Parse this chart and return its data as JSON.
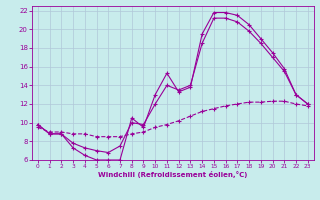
{
  "xlabel": "Windchill (Refroidissement éolien,°C)",
  "bg_color": "#c8ecec",
  "line_color": "#990099",
  "grid_color": "#b0c8d8",
  "xlim": [
    -0.5,
    23.5
  ],
  "ylim": [
    6,
    22.5
  ],
  "xticks": [
    0,
    1,
    2,
    3,
    4,
    5,
    6,
    7,
    8,
    9,
    10,
    11,
    12,
    13,
    14,
    15,
    16,
    17,
    18,
    19,
    20,
    21,
    22,
    23
  ],
  "yticks": [
    6,
    8,
    10,
    12,
    14,
    16,
    18,
    20,
    22
  ],
  "line1_x": [
    0,
    1,
    2,
    3,
    4,
    5,
    6,
    7,
    8,
    9,
    10,
    11,
    12,
    13,
    14,
    15,
    16,
    17,
    18,
    19,
    20,
    21,
    22,
    23
  ],
  "line1_y": [
    9.8,
    8.8,
    8.8,
    7.3,
    6.5,
    6.0,
    6.0,
    6.0,
    10.5,
    9.5,
    13.0,
    15.3,
    13.3,
    13.8,
    19.5,
    21.8,
    21.8,
    21.5,
    20.5,
    19.0,
    17.5,
    15.8,
    13.0,
    12.0
  ],
  "line2_x": [
    0,
    1,
    2,
    3,
    4,
    5,
    6,
    7,
    8,
    9,
    10,
    11,
    12,
    13,
    14,
    15,
    16,
    17,
    18,
    19,
    20,
    21,
    22,
    23
  ],
  "line2_y": [
    9.5,
    9.0,
    9.0,
    8.8,
    8.8,
    8.5,
    8.5,
    8.5,
    8.8,
    9.0,
    9.5,
    9.8,
    10.2,
    10.7,
    11.2,
    11.5,
    11.8,
    12.0,
    12.2,
    12.2,
    12.3,
    12.3,
    12.0,
    11.8
  ],
  "line3_x": [
    0,
    1,
    2,
    3,
    4,
    5,
    6,
    7,
    8,
    9,
    10,
    11,
    12,
    13,
    14,
    15,
    16,
    17,
    18,
    19,
    20,
    21,
    22,
    23
  ],
  "line3_y": [
    9.8,
    8.8,
    8.8,
    7.8,
    7.3,
    7.0,
    6.8,
    7.5,
    10.0,
    9.8,
    12.0,
    14.0,
    13.5,
    14.0,
    18.5,
    21.2,
    21.2,
    20.8,
    19.8,
    18.5,
    17.0,
    15.5,
    13.0,
    12.0
  ]
}
